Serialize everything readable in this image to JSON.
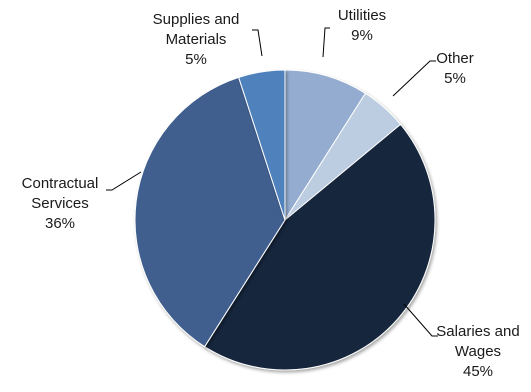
{
  "chart_data": {
    "type": "pie",
    "title": "",
    "slices": [
      {
        "label_lines": [
          "Utilities"
        ],
        "label": "Utilities",
        "value": 9,
        "value_label": "9%",
        "color": "#94acd0"
      },
      {
        "label_lines": [
          "Other"
        ],
        "label": "Other",
        "value": 5,
        "value_label": "5%",
        "color": "#bccde2"
      },
      {
        "label_lines": [
          "Salaries and",
          "Wages"
        ],
        "label": "Salaries and Wages",
        "value": 45,
        "value_label": "45%",
        "color": "#17263e"
      },
      {
        "label_lines": [
          "Contractual",
          "Services"
        ],
        "label": "Contractual Services",
        "value": 36,
        "value_label": "36%",
        "color": "#3f5e8e"
      },
      {
        "label_lines": [
          "Supplies and",
          "Materials"
        ],
        "label": "Supplies and Materials",
        "value": 5,
        "value_label": "5%",
        "color": "#4f81bd"
      }
    ],
    "legend": "none",
    "data_labels": "outside with leader lines"
  }
}
